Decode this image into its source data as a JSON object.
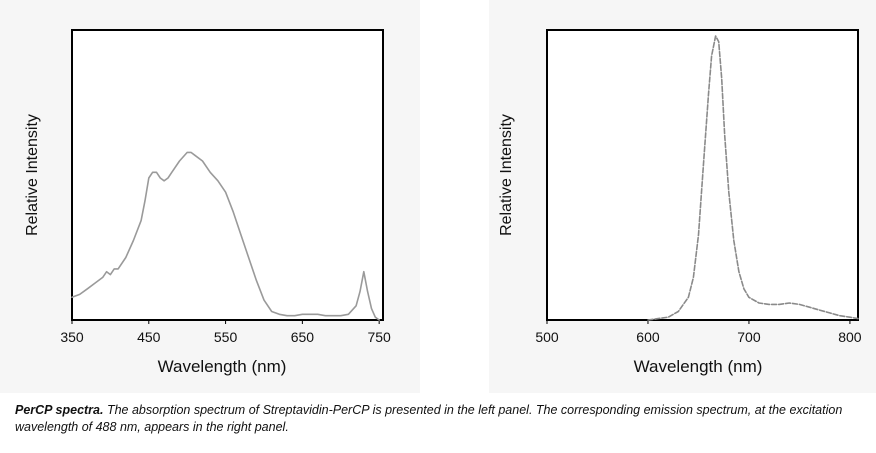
{
  "chart_data": [
    {
      "type": "line",
      "title": "",
      "xlabel": "Wavelength (nm)",
      "ylabel": "Relative Intensity",
      "xlim": [
        350,
        755
      ],
      "ylim": [
        0,
        1
      ],
      "xticks": [
        "350",
        "450",
        "550",
        "650",
        "750"
      ],
      "xtick_values": [
        350,
        450,
        550,
        650,
        750
      ],
      "line_style": "solid",
      "line_color": "#9a9a9a",
      "grid": false,
      "series": [
        {
          "x": [
            350,
            360,
            370,
            380,
            390,
            395,
            400,
            405,
            410,
            420,
            430,
            440,
            445,
            450,
            455,
            460,
            465,
            470,
            475,
            480,
            490,
            500,
            505,
            510,
            520,
            530,
            540,
            550,
            560,
            570,
            580,
            590,
            600,
            610,
            620,
            630,
            640,
            650,
            660,
            670,
            680,
            690,
            700,
            710,
            720,
            725,
            730,
            735,
            740,
            745,
            750
          ],
          "y": [
            0.08,
            0.09,
            0.11,
            0.13,
            0.15,
            0.17,
            0.16,
            0.18,
            0.18,
            0.22,
            0.28,
            0.35,
            0.42,
            0.5,
            0.52,
            0.52,
            0.5,
            0.49,
            0.5,
            0.52,
            0.56,
            0.59,
            0.59,
            0.58,
            0.56,
            0.52,
            0.49,
            0.45,
            0.38,
            0.3,
            0.22,
            0.14,
            0.07,
            0.03,
            0.02,
            0.015,
            0.015,
            0.02,
            0.02,
            0.02,
            0.015,
            0.015,
            0.015,
            0.02,
            0.05,
            0.1,
            0.17,
            0.1,
            0.04,
            0.01,
            0.0
          ]
        }
      ]
    },
    {
      "type": "line",
      "title": "",
      "xlabel": "Wavelength (nm)",
      "ylabel": "Relative Intensity",
      "xlim": [
        500,
        808
      ],
      "ylim": [
        0,
        1
      ],
      "xticks": [
        "500",
        "600",
        "700",
        "800"
      ],
      "xtick_values": [
        500,
        600,
        700,
        800
      ],
      "line_style": "dashed",
      "line_color": "#8a8a8a",
      "grid": false,
      "series": [
        {
          "x": [
            600,
            610,
            620,
            630,
            640,
            645,
            650,
            655,
            660,
            663,
            667,
            670,
            673,
            676,
            680,
            685,
            690,
            695,
            700,
            710,
            720,
            730,
            740,
            750,
            760,
            770,
            780,
            790,
            800,
            808
          ],
          "y": [
            0.0,
            0.005,
            0.01,
            0.03,
            0.08,
            0.15,
            0.3,
            0.55,
            0.8,
            0.93,
            1.0,
            0.98,
            0.85,
            0.65,
            0.45,
            0.28,
            0.17,
            0.11,
            0.08,
            0.06,
            0.055,
            0.055,
            0.06,
            0.055,
            0.045,
            0.035,
            0.025,
            0.015,
            0.01,
            0.005
          ]
        }
      ]
    }
  ],
  "caption": {
    "bold": "PerCP spectra.",
    "text": " The absorption spectrum of Streptavidin-PerCP is presented in the left panel. The corresponding emission spectrum, at the excitation wavelength of 488 nm, appears in the right panel."
  }
}
